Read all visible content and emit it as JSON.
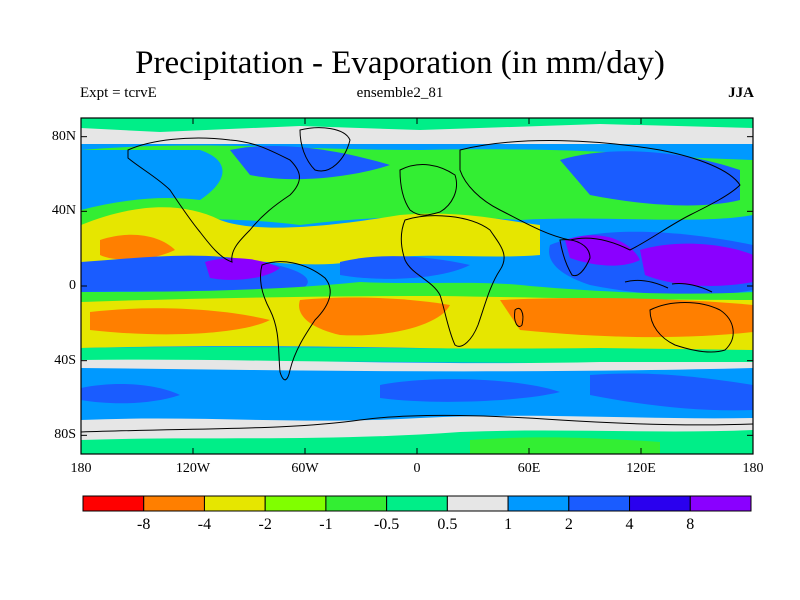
{
  "header": {
    "title": "Precipitation - Evaporation (in mm/day)",
    "experiment": "Expt = tcrvE",
    "run": "ensemble2_81",
    "season": "JJA"
  },
  "axes": {
    "lat_ticks": [
      {
        "value": 80,
        "label": "80N"
      },
      {
        "value": 40,
        "label": "40N"
      },
      {
        "value": 0,
        "label": "0"
      },
      {
        "value": -40,
        "label": "40S"
      },
      {
        "value": -80,
        "label": "80S"
      }
    ],
    "lon_ticks": [
      {
        "value": -180,
        "label": "180"
      },
      {
        "value": -120,
        "label": "120W"
      },
      {
        "value": -60,
        "label": "60W"
      },
      {
        "value": 0,
        "label": "0"
      },
      {
        "value": 60,
        "label": "60E"
      },
      {
        "value": 120,
        "label": "120E"
      },
      {
        "value": 180,
        "label": "180"
      }
    ]
  },
  "legend": {
    "colors": [
      "#ff0000",
      "#ff7f00",
      "#e6e600",
      "#80ff00",
      "#33ee33",
      "#00ee88",
      "#e6e6e6",
      "#0099ff",
      "#1a5cff",
      "#2a00ee",
      "#8a00ff"
    ],
    "labels": [
      "-8",
      "-4",
      "-2",
      "-1",
      "-0.5",
      "0.5",
      "1",
      "2",
      "4",
      "8"
    ]
  },
  "map": {
    "projection": "cylindrical-equidistant",
    "lon_range": [
      -180,
      180
    ],
    "lat_range": [
      -90,
      90
    ],
    "coastlines": true
  }
}
